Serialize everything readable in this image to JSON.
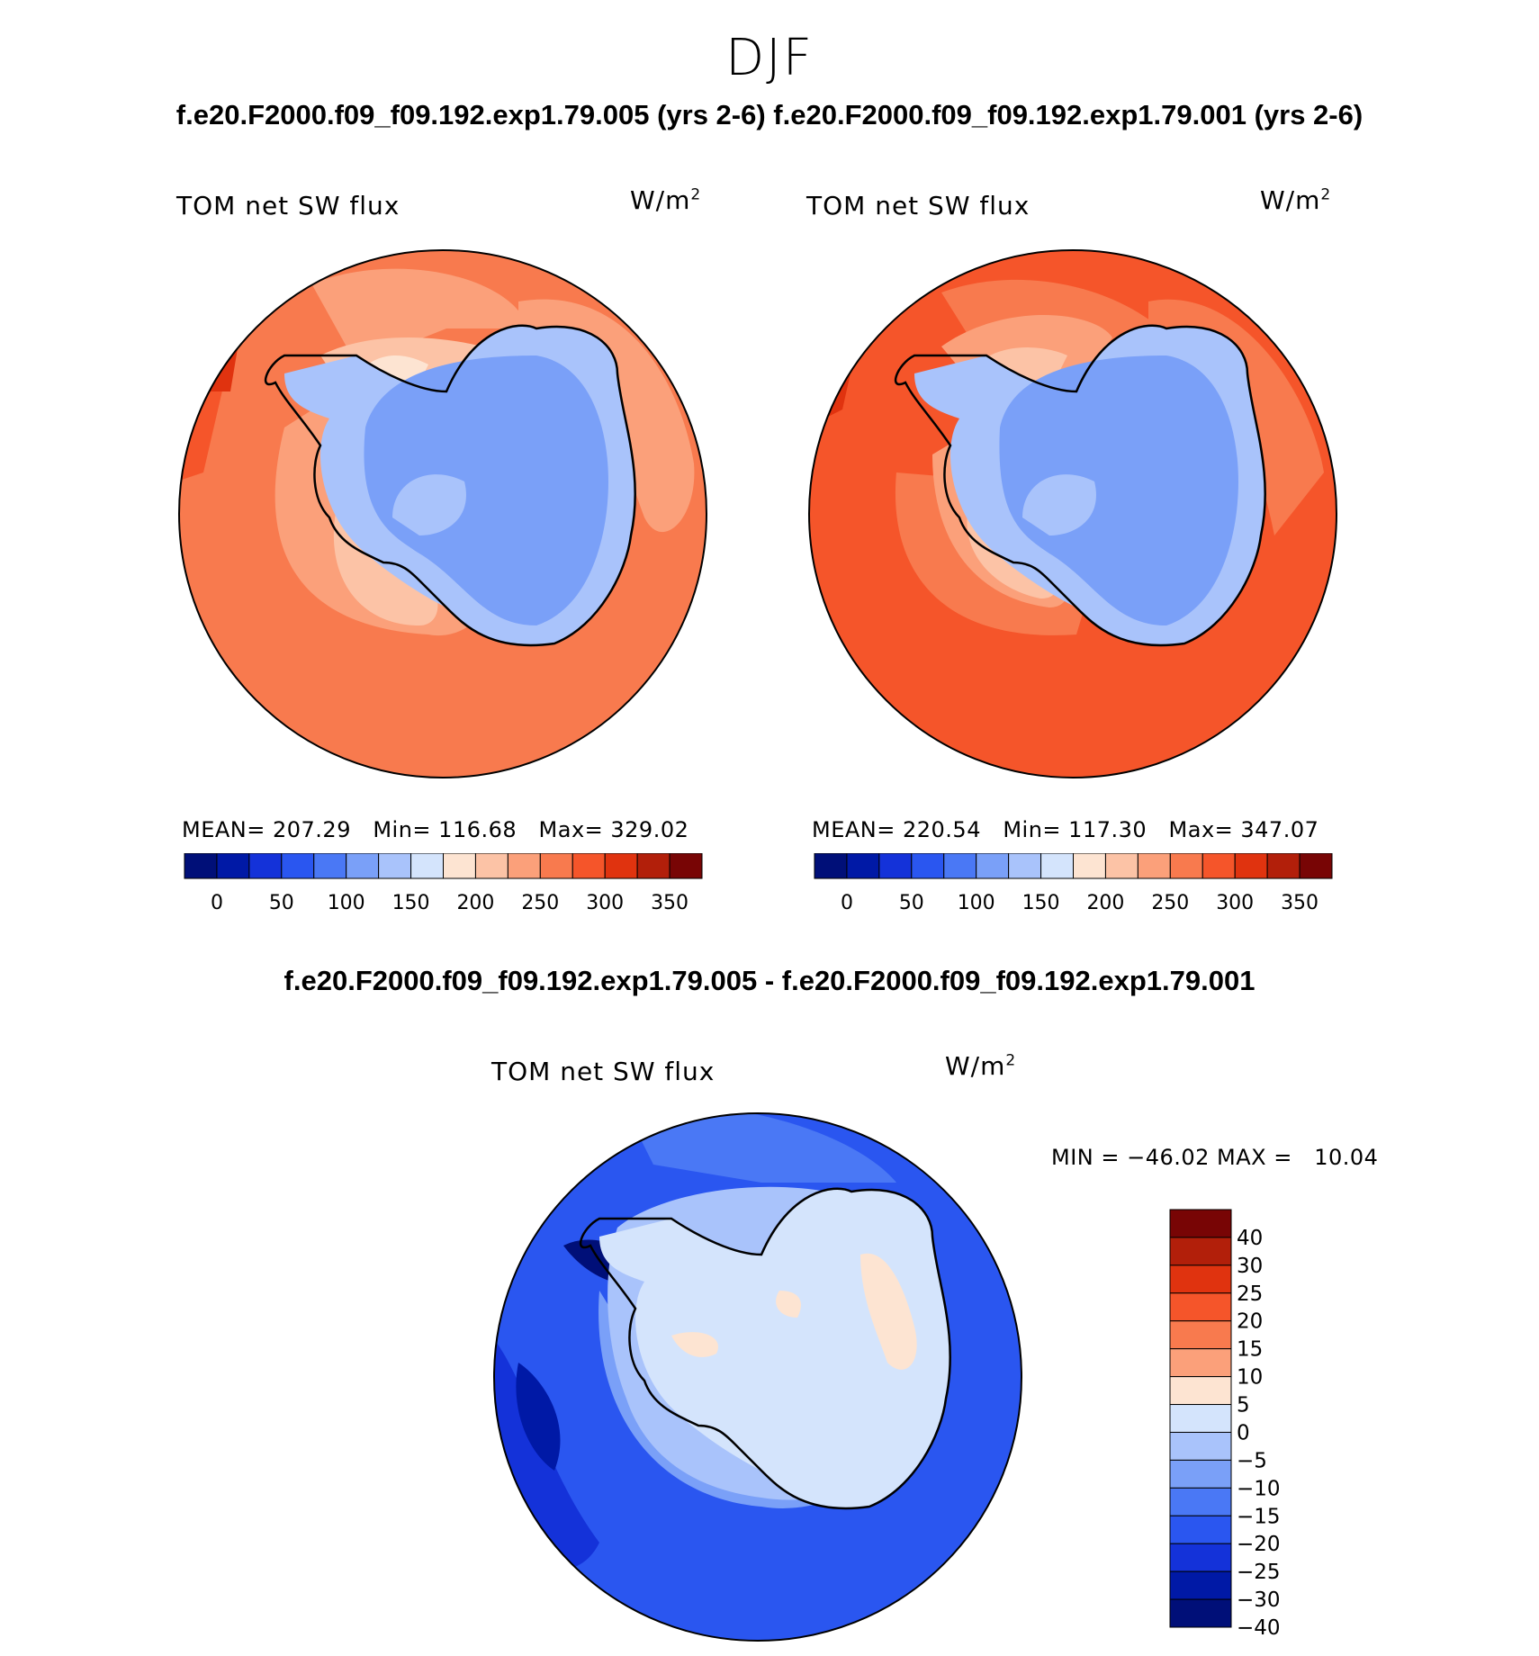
{
  "figure": {
    "season": "DJF",
    "case_titles": "f.e20.F2000.f09_f09.192.exp1.79.005 (yrs 2-6) f.e20.F2000.f09_f09.192.exp1.79.001 (yrs 2-6)",
    "diff_title": "f.e20.F2000.f09_f09.192.exp1.79.005 - f.e20.F2000.f09_f09.192.exp1.79.001"
  },
  "panels": {
    "case1": {
      "title": "TOM net SW flux",
      "units_base": "W/m",
      "units_exp": "2",
      "stats": "MEAN= 207.29   Min= 116.68   Max= 329.02"
    },
    "case2": {
      "title": "TOM net SW flux",
      "units_base": "W/m",
      "units_exp": "2",
      "stats": "MEAN= 220.54   Min= 117.30   Max= 347.07"
    },
    "diff": {
      "title": "TOM net SW flux",
      "units_base": "W/m",
      "units_exp": "2",
      "stats": "MIN = −46.02 MAX =   10.04"
    }
  },
  "colorbar_abs": {
    "colors": [
      "#000f78",
      "#0019a6",
      "#1432d9",
      "#2a56f0",
      "#4a78f5",
      "#7aa0f8",
      "#a9c3fb",
      "#d4e4fc",
      "#fde4d2",
      "#fcc3a6",
      "#fba07a",
      "#f87a4e",
      "#f5552a",
      "#e0330f",
      "#b21f0a",
      "#780505"
    ],
    "labels": [
      "0",
      "50",
      "100",
      "150",
      "200",
      "250",
      "300",
      "350"
    ]
  },
  "colorbar_diff": {
    "colors": [
      "#780505",
      "#b21f0a",
      "#e0330f",
      "#f5552a",
      "#f87a4e",
      "#fba07a",
      "#fde4d2",
      "#d4e4fc",
      "#a9c3fb",
      "#7aa0f8",
      "#4a78f5",
      "#2a56f0",
      "#1432d9",
      "#0019a6",
      "#000f78"
    ],
    "labels": [
      "40",
      "30",
      "25",
      "20",
      "15",
      "10",
      "5",
      "0",
      "−5",
      "−10",
      "−15",
      "−20",
      "−25",
      "−30",
      "−40"
    ]
  }
}
